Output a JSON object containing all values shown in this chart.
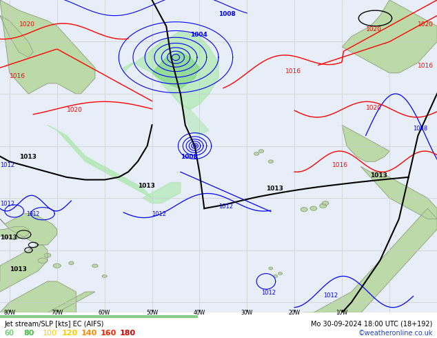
{
  "figsize": [
    6.34,
    4.9
  ],
  "dpi": 100,
  "title_left": "Jet stream/SLP [kts] EC (AIFS)",
  "title_right": "Mo 30-09-2024 18:00 UTC (18+192)",
  "copyright": "©weatheronline.co.uk",
  "legend_values": [
    "60",
    "80",
    "100",
    "120",
    "140",
    "160",
    "180"
  ],
  "legend_colors": [
    "#44bb44",
    "#44bb44",
    "#ffcc00",
    "#ffcc00",
    "#ff8800",
    "#ff2200",
    "#cc0000"
  ],
  "legend_bold": [
    false,
    true,
    false,
    true,
    true,
    true,
    true
  ],
  "ocean_color": "#e8eef8",
  "land_color": "#b8d8a0",
  "land_border": "#888888",
  "jet_green_light": "#a8e8a8",
  "jet_green_mid": "#70d070",
  "grid_color": "#cccccc",
  "map_xlim": [
    -82,
    10
  ],
  "map_ylim": [
    8,
    68
  ],
  "bottom_bar_color": "#ffffff"
}
